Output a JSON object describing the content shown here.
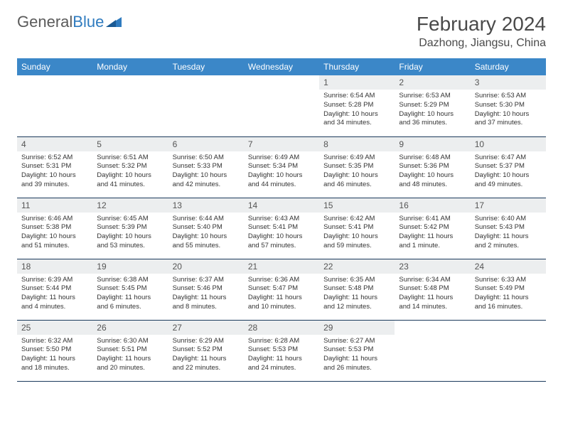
{
  "logo": {
    "text1": "General",
    "text2": "Blue"
  },
  "title": "February 2024",
  "location": "Dazhong, Jiangsu, China",
  "weekdays": [
    "Sunday",
    "Monday",
    "Tuesday",
    "Wednesday",
    "Thursday",
    "Friday",
    "Saturday"
  ],
  "colors": {
    "header_bg": "#3b87c8",
    "header_fg": "#ffffff",
    "daynum_bg": "#eceeef",
    "border": "#1a3a5c",
    "title_color": "#4a4a4a"
  },
  "grid": [
    [
      null,
      null,
      null,
      null,
      {
        "n": "1",
        "sr": "6:54 AM",
        "ss": "5:28 PM",
        "dl": "10 hours and 34 minutes."
      },
      {
        "n": "2",
        "sr": "6:53 AM",
        "ss": "5:29 PM",
        "dl": "10 hours and 36 minutes."
      },
      {
        "n": "3",
        "sr": "6:53 AM",
        "ss": "5:30 PM",
        "dl": "10 hours and 37 minutes."
      }
    ],
    [
      {
        "n": "4",
        "sr": "6:52 AM",
        "ss": "5:31 PM",
        "dl": "10 hours and 39 minutes."
      },
      {
        "n": "5",
        "sr": "6:51 AM",
        "ss": "5:32 PM",
        "dl": "10 hours and 41 minutes."
      },
      {
        "n": "6",
        "sr": "6:50 AM",
        "ss": "5:33 PM",
        "dl": "10 hours and 42 minutes."
      },
      {
        "n": "7",
        "sr": "6:49 AM",
        "ss": "5:34 PM",
        "dl": "10 hours and 44 minutes."
      },
      {
        "n": "8",
        "sr": "6:49 AM",
        "ss": "5:35 PM",
        "dl": "10 hours and 46 minutes."
      },
      {
        "n": "9",
        "sr": "6:48 AM",
        "ss": "5:36 PM",
        "dl": "10 hours and 48 minutes."
      },
      {
        "n": "10",
        "sr": "6:47 AM",
        "ss": "5:37 PM",
        "dl": "10 hours and 49 minutes."
      }
    ],
    [
      {
        "n": "11",
        "sr": "6:46 AM",
        "ss": "5:38 PM",
        "dl": "10 hours and 51 minutes."
      },
      {
        "n": "12",
        "sr": "6:45 AM",
        "ss": "5:39 PM",
        "dl": "10 hours and 53 minutes."
      },
      {
        "n": "13",
        "sr": "6:44 AM",
        "ss": "5:40 PM",
        "dl": "10 hours and 55 minutes."
      },
      {
        "n": "14",
        "sr": "6:43 AM",
        "ss": "5:41 PM",
        "dl": "10 hours and 57 minutes."
      },
      {
        "n": "15",
        "sr": "6:42 AM",
        "ss": "5:41 PM",
        "dl": "10 hours and 59 minutes."
      },
      {
        "n": "16",
        "sr": "6:41 AM",
        "ss": "5:42 PM",
        "dl": "11 hours and 1 minute."
      },
      {
        "n": "17",
        "sr": "6:40 AM",
        "ss": "5:43 PM",
        "dl": "11 hours and 2 minutes."
      }
    ],
    [
      {
        "n": "18",
        "sr": "6:39 AM",
        "ss": "5:44 PM",
        "dl": "11 hours and 4 minutes."
      },
      {
        "n": "19",
        "sr": "6:38 AM",
        "ss": "5:45 PM",
        "dl": "11 hours and 6 minutes."
      },
      {
        "n": "20",
        "sr": "6:37 AM",
        "ss": "5:46 PM",
        "dl": "11 hours and 8 minutes."
      },
      {
        "n": "21",
        "sr": "6:36 AM",
        "ss": "5:47 PM",
        "dl": "11 hours and 10 minutes."
      },
      {
        "n": "22",
        "sr": "6:35 AM",
        "ss": "5:48 PM",
        "dl": "11 hours and 12 minutes."
      },
      {
        "n": "23",
        "sr": "6:34 AM",
        "ss": "5:48 PM",
        "dl": "11 hours and 14 minutes."
      },
      {
        "n": "24",
        "sr": "6:33 AM",
        "ss": "5:49 PM",
        "dl": "11 hours and 16 minutes."
      }
    ],
    [
      {
        "n": "25",
        "sr": "6:32 AM",
        "ss": "5:50 PM",
        "dl": "11 hours and 18 minutes."
      },
      {
        "n": "26",
        "sr": "6:30 AM",
        "ss": "5:51 PM",
        "dl": "11 hours and 20 minutes."
      },
      {
        "n": "27",
        "sr": "6:29 AM",
        "ss": "5:52 PM",
        "dl": "11 hours and 22 minutes."
      },
      {
        "n": "28",
        "sr": "6:28 AM",
        "ss": "5:53 PM",
        "dl": "11 hours and 24 minutes."
      },
      {
        "n": "29",
        "sr": "6:27 AM",
        "ss": "5:53 PM",
        "dl": "11 hours and 26 minutes."
      },
      null,
      null
    ]
  ],
  "labels": {
    "sunrise": "Sunrise:",
    "sunset": "Sunset:",
    "daylight": "Daylight:"
  }
}
